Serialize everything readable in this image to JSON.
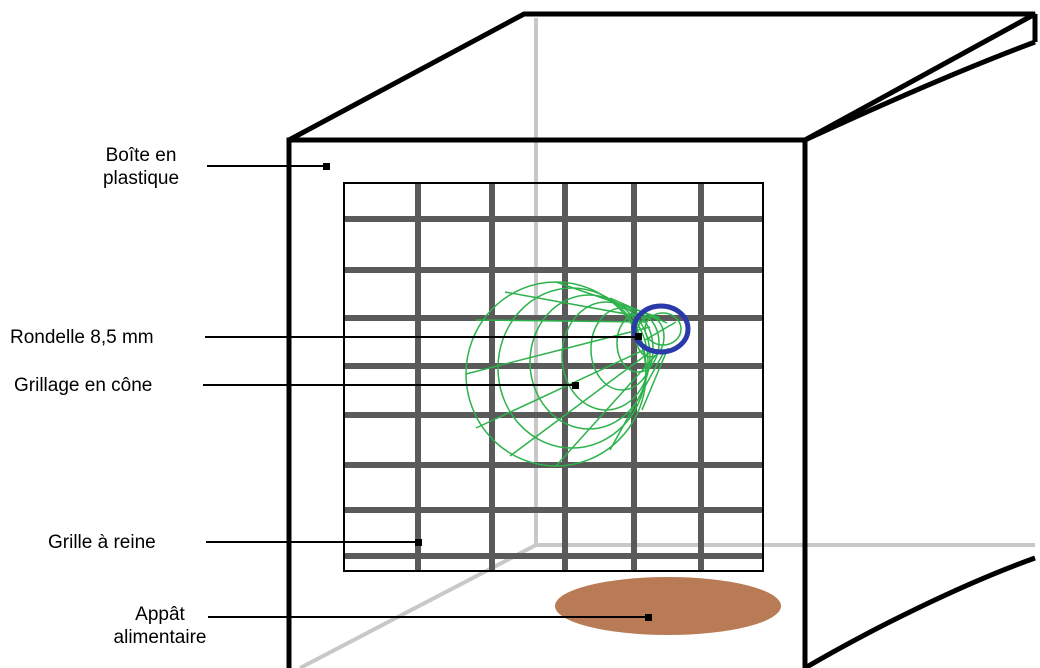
{
  "labels": {
    "box": [
      "Boîte en",
      "plastique"
    ],
    "washer": "Rondelle 8,5 mm",
    "cone": "Grillage en cône",
    "grid": "Grille à reine",
    "bait": [
      "Appât",
      "alimentaire"
    ]
  },
  "colors": {
    "outline": "#000000",
    "back_edges": "#c8c8c8",
    "grid_bars": "#5a5a5a",
    "cone_mesh": "#2db24b",
    "washer": "#2a3aa8",
    "bait": "#b97a56"
  }
}
